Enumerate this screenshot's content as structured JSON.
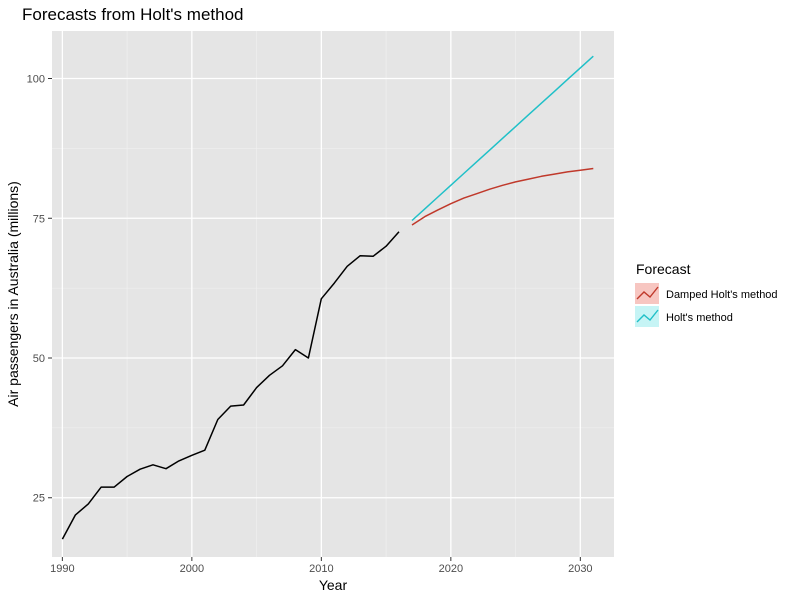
{
  "chart_data": {
    "type": "line",
    "title": "Forecasts from Holt's method",
    "xlabel": "Year",
    "ylabel": "Air passengers in Australia (millions)",
    "xlim": [
      1989.2,
      2032.6
    ],
    "ylim": [
      14.4,
      108.5
    ],
    "x_ticks": [
      1990,
      2000,
      2010,
      2020,
      2030
    ],
    "y_ticks": [
      25,
      50,
      75,
      100
    ],
    "grid": true,
    "legend": {
      "title": "Forecast",
      "position": "right",
      "entries": [
        {
          "label": "Damped Holt's method",
          "color": "#c0392b"
        },
        {
          "label": "Holt's method",
          "color": "#20c0c8"
        }
      ]
    },
    "series": [
      {
        "color": "#000000",
        "x": [
          1990,
          1991,
          1992,
          1993,
          1994,
          1995,
          1996,
          1997,
          1998,
          1999,
          2000,
          2001,
          2002,
          2003,
          2004,
          2005,
          2006,
          2007,
          2008,
          2009,
          2010,
          2011,
          2012,
          2013,
          2014,
          2015,
          2016
        ],
        "y": [
          17.6,
          21.9,
          23.9,
          26.9,
          26.9,
          28.8,
          30.1,
          30.9,
          30.2,
          31.6,
          32.6,
          33.5,
          39.0,
          41.4,
          41.6,
          44.7,
          46.9,
          48.6,
          51.5,
          50.0,
          60.6,
          63.4,
          66.4,
          68.3,
          68.2,
          70.0,
          72.6
        ]
      },
      {
        "name": "Damped Holt's method",
        "color": "#c0392b",
        "x": [
          2017,
          2018,
          2019,
          2020,
          2021,
          2022,
          2023,
          2024,
          2025,
          2026,
          2027,
          2028,
          2029,
          2030,
          2031
        ],
        "y": [
          73.8,
          75.3,
          76.5,
          77.6,
          78.6,
          79.4,
          80.2,
          80.9,
          81.5,
          82.0,
          82.5,
          82.9,
          83.3,
          83.6,
          83.9
        ]
      },
      {
        "name": "Holt's method",
        "color": "#20c0c8",
        "x": [
          2017,
          2018,
          2019,
          2020,
          2021,
          2022,
          2023,
          2024,
          2025,
          2026,
          2027,
          2028,
          2029,
          2030,
          2031
        ],
        "y": [
          74.6,
          76.7,
          78.8,
          80.9,
          83.0,
          85.1,
          87.2,
          89.3,
          91.4,
          93.5,
          95.6,
          97.7,
          99.8,
          101.9,
          104.0
        ]
      }
    ]
  }
}
